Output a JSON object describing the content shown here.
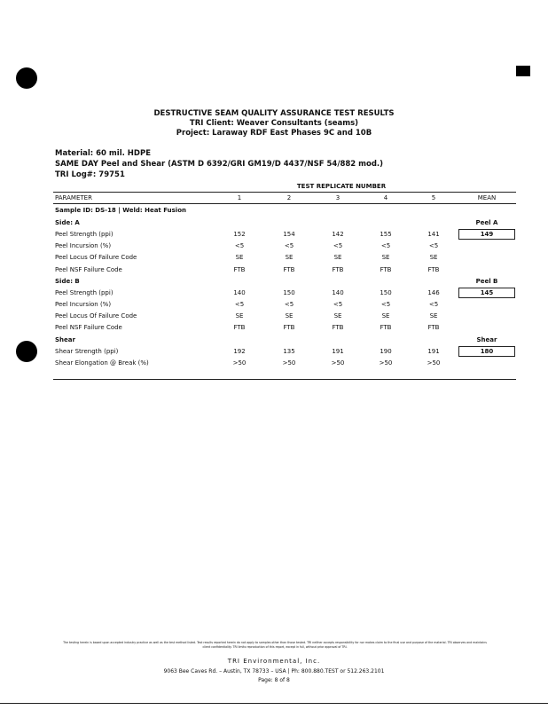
{
  "header": {
    "title": "DESTRUCTIVE SEAM QUALITY ASSURANCE TEST RESULTS",
    "client": "TRI Client:  Weaver Consultants (seams)",
    "project": "Project:  Laraway RDF East Phases 9C and 10B"
  },
  "info": {
    "material": "Material: 60 mil. HDPE",
    "method": "SAME DAY Peel and Shear (ASTM D 6392/GRI GM19/D 4437/NSF 54/882 mod.)",
    "log": "TRI Log#:  79751"
  },
  "table": {
    "group_header": "TEST REPLICATE NUMBER",
    "columns": [
      "PARAMETER",
      "1",
      "2",
      "3",
      "4",
      "5",
      "MEAN"
    ],
    "sample": "Sample ID: DS-18 | Weld: Heat Fusion",
    "sections": [
      {
        "label": "Side: A",
        "mean_label": "Peel A",
        "rows": [
          {
            "parameter": "Peel Strength (ppi)",
            "values": [
              "152",
              "154",
              "142",
              "155",
              "141"
            ],
            "mean": "149"
          },
          {
            "parameter": "Peel Incursion (%)",
            "values": [
              "<5",
              "<5",
              "<5",
              "<5",
              "<5"
            ]
          },
          {
            "parameter": "Peel Locus Of Failure Code",
            "values": [
              "SE",
              "SE",
              "SE",
              "SE",
              "SE"
            ]
          },
          {
            "parameter": "Peel NSF Failure Code",
            "values": [
              "FTB",
              "FTB",
              "FTB",
              "FTB",
              "FTB"
            ]
          }
        ]
      },
      {
        "label": "Side: B",
        "mean_label": "Peel B",
        "rows": [
          {
            "parameter": "Peel Strength (ppi)",
            "values": [
              "140",
              "150",
              "140",
              "150",
              "146"
            ],
            "mean": "145"
          },
          {
            "parameter": "Peel Incursion (%)",
            "values": [
              "<5",
              "<5",
              "<5",
              "<5",
              "<5"
            ]
          },
          {
            "parameter": "Peel Locus Of Failure Code",
            "values": [
              "SE",
              "SE",
              "SE",
              "SE",
              "SE"
            ]
          },
          {
            "parameter": "Peel NSF Failure Code",
            "values": [
              "FTB",
              "FTB",
              "FTB",
              "FTB",
              "FTB"
            ]
          }
        ]
      },
      {
        "label": "Shear",
        "mean_label": "Shear",
        "rows": [
          {
            "parameter": "Shear Strength (ppi)",
            "values": [
              "192",
              "135",
              "191",
              "190",
              "191"
            ],
            "mean": "180"
          },
          {
            "parameter": "Shear Elongation @ Break (%)",
            "values": [
              ">50",
              ">50",
              ">50",
              ">50",
              ">50"
            ]
          }
        ]
      }
    ]
  },
  "footer": {
    "disclaimer": "The testing herein is based upon accepted industry practice as well as the test method listed. Test results reported herein do not apply to samples other than those tested. TRI neither accepts responsibility for nor makes claim to the final use and purpose of the material. TRI observes and maintains client confidentiality. TRI limits reproduction of this report, except in full, without prior approval of TRI.",
    "company": "TRI Environmental, Inc.",
    "address": "9063 Bee Caves Rd. – Austin, TX 78733 – USA | Ph: 800.880.TEST or 512.263.2101",
    "page": "Page: 8 of 8"
  }
}
